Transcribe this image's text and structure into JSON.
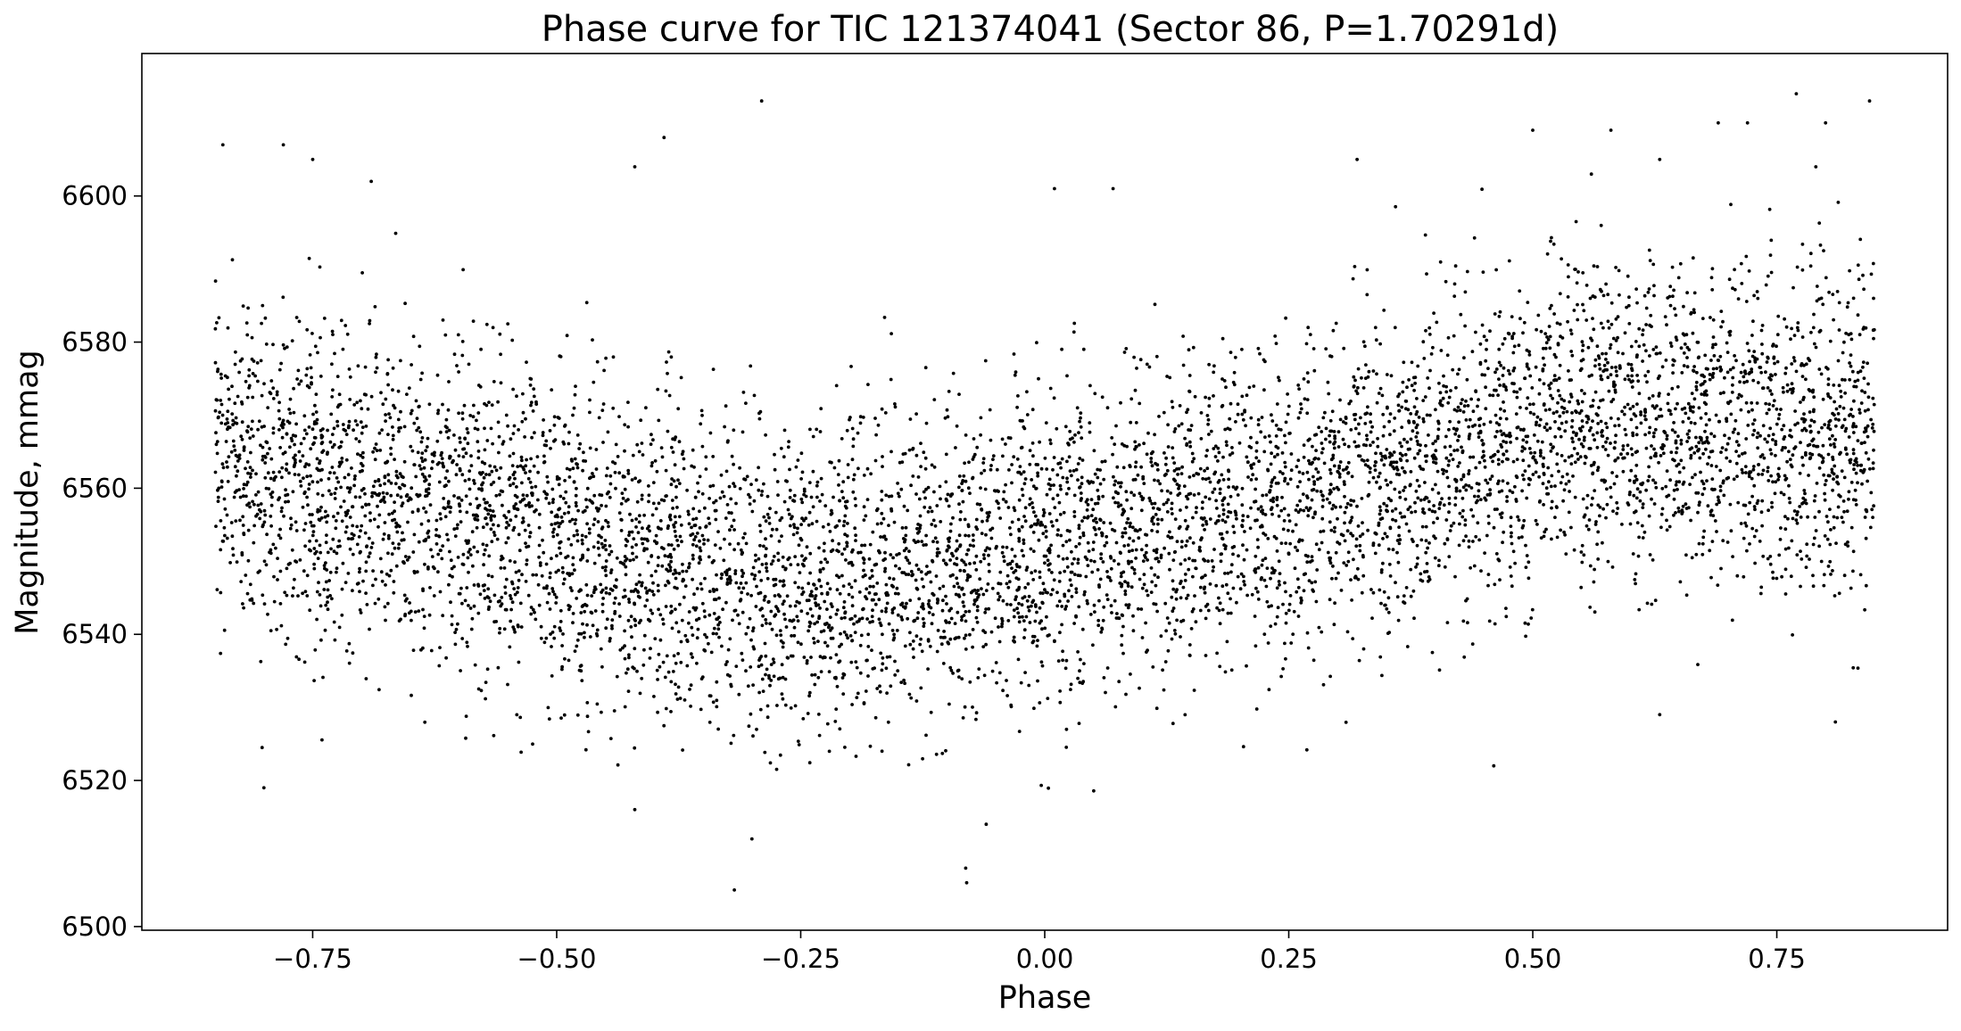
{
  "chart_data": {
    "type": "scatter",
    "title": "Phase curve for TIC 121374041 (Sector 86, P=1.70291d)",
    "xlabel": "Phase",
    "ylabel": "Magnitude, mmag",
    "xlim": [
      -0.925,
      0.925
    ],
    "ylim": [
      6499.5,
      6619.5
    ],
    "x_ticks": [
      -0.75,
      -0.5,
      -0.25,
      0.0,
      0.25,
      0.5,
      0.75
    ],
    "x_tick_labels": [
      "−0.75",
      "−0.50",
      "−0.25",
      "0.00",
      "0.25",
      "0.50",
      "0.75"
    ],
    "y_ticks": [
      6500,
      6520,
      6540,
      6560,
      6580,
      6600
    ],
    "y_tick_labels": [
      "6500",
      "6520",
      "6540",
      "6560",
      "6580",
      "6600"
    ],
    "grid": false,
    "legend": null,
    "marker_color": "#000000",
    "phase_range": [
      -0.85,
      0.85
    ],
    "trend": {
      "phase": [
        -0.85,
        -0.75,
        -0.6,
        -0.45,
        -0.3,
        -0.15,
        0.0,
        0.15,
        0.3,
        0.45,
        0.6,
        0.75,
        0.85
      ],
      "magnitude": [
        6564,
        6561,
        6557,
        6552,
        6548,
        6549,
        6552,
        6556,
        6560,
        6566,
        6569,
        6568,
        6566
      ]
    },
    "scatter_sigma": 10.5,
    "point_count": 7200,
    "outliers": [
      {
        "x": -0.842,
        "y": 6607
      },
      {
        "x": -0.78,
        "y": 6607
      },
      {
        "x": -0.75,
        "y": 6605
      },
      {
        "x": -0.69,
        "y": 6602
      },
      {
        "x": -0.8,
        "y": 6519
      },
      {
        "x": -0.42,
        "y": 6604
      },
      {
        "x": -0.39,
        "y": 6608
      },
      {
        "x": -0.29,
        "y": 6613
      },
      {
        "x": -0.318,
        "y": 6505
      },
      {
        "x": -0.3,
        "y": 6512
      },
      {
        "x": -0.42,
        "y": 6516
      },
      {
        "x": -0.08,
        "y": 6506
      },
      {
        "x": -0.081,
        "y": 6508
      },
      {
        "x": -0.06,
        "y": 6514
      },
      {
        "x": 0.01,
        "y": 6601
      },
      {
        "x": 0.07,
        "y": 6601
      },
      {
        "x": 0.32,
        "y": 6605
      },
      {
        "x": 0.46,
        "y": 6522
      },
      {
        "x": 0.5,
        "y": 6609
      },
      {
        "x": 0.56,
        "y": 6603
      },
      {
        "x": 0.58,
        "y": 6609
      },
      {
        "x": 0.63,
        "y": 6605
      },
      {
        "x": 0.69,
        "y": 6610
      },
      {
        "x": 0.72,
        "y": 6610
      },
      {
        "x": 0.77,
        "y": 6614
      },
      {
        "x": 0.79,
        "y": 6604
      },
      {
        "x": 0.8,
        "y": 6610
      },
      {
        "x": 0.845,
        "y": 6613
      },
      {
        "x": 0.81,
        "y": 6528
      },
      {
        "x": 0.63,
        "y": 6529
      }
    ]
  }
}
